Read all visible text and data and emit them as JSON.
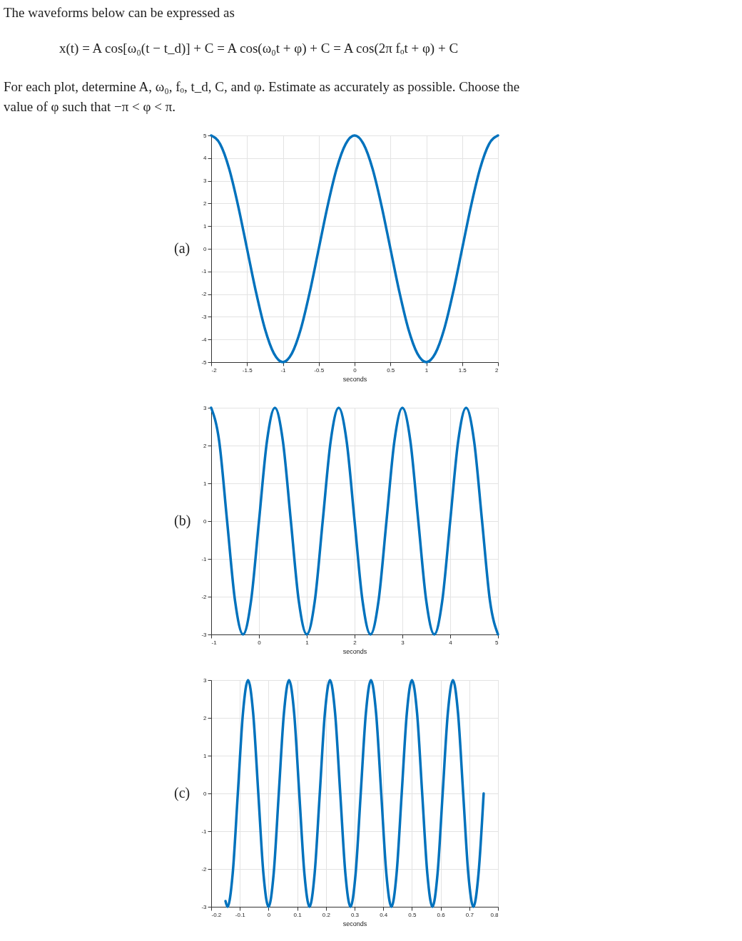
{
  "chart_data": [
    {
      "type": "line",
      "title": "(a)",
      "annotations": [
        "The waveforms below can be expressed as",
        "x(t) = A cos[ω₀(t − t_d)] + C = A cos(ω₀t + φ) + C = A cos(2π fₒt + φ) + C",
        "For each plot, determine A, ω₀, fₒ, t_d, C, and φ. Estimate as accurately as possible. Choose the",
        "value of φ such that −π < φ < π."
      ],
      "xlabel": "seconds",
      "xlim": [
        -2,
        2
      ],
      "xticks": [
        -2,
        -1.5,
        -1,
        -0.5,
        0,
        0.5,
        1,
        1.5,
        2
      ],
      "ylim": [
        -5,
        5
      ],
      "yticks": [
        -5,
        -4,
        -3,
        -2,
        -1,
        0,
        1,
        2,
        3,
        4,
        5
      ],
      "grid": true,
      "series": [
        {
          "color": "#0072bd",
          "x": [
            -2,
            -1.875,
            -1.75,
            -1.625,
            -1.5,
            -1.375,
            -1.25,
            -1.125,
            -1,
            -0.875,
            -0.75,
            -0.625,
            -0.5,
            -0.375,
            -0.25,
            -0.125,
            0,
            0.125,
            0.25,
            0.375,
            0.5,
            0.625,
            0.75,
            0.875,
            1,
            1.125,
            1.25,
            1.375,
            1.5,
            1.625,
            1.75,
            1.875,
            2
          ],
          "values": [
            5,
            4.62,
            3.54,
            1.91,
            0,
            -1.91,
            -3.54,
            -4.62,
            -5,
            -4.62,
            -3.54,
            -1.91,
            0,
            1.91,
            3.54,
            4.62,
            5,
            4.62,
            3.54,
            1.91,
            0,
            -1.91,
            -3.54,
            -4.62,
            -5,
            -4.62,
            -3.54,
            -1.91,
            0,
            1.91,
            3.54,
            4.62,
            5
          ]
        }
      ]
    },
    {
      "type": "line",
      "title": "(b)",
      "xlabel": "seconds",
      "xlim": [
        -1,
        5
      ],
      "xticks": [
        -1,
        0,
        1,
        2,
        3,
        4,
        5
      ],
      "ylim": [
        -3,
        3
      ],
      "yticks": [
        -3,
        -2,
        -1,
        0,
        1,
        2,
        3
      ],
      "grid": true,
      "series": [
        {
          "color": "#0072bd",
          "x": [
            -1,
            -0.833,
            -0.667,
            -0.5,
            -0.333,
            -0.167,
            0,
            0.167,
            0.333,
            0.5,
            0.667,
            0.833,
            1,
            1.167,
            1.333,
            1.5,
            1.667,
            1.833,
            2,
            2.167,
            2.333,
            2.5,
            2.667,
            2.833,
            3,
            3.167,
            3.333,
            3.5,
            3.667,
            3.833,
            4,
            4.167,
            4.333,
            4.5,
            4.667,
            4.833,
            5
          ],
          "values": [
            3,
            2.12,
            0,
            -2.12,
            -3,
            -2.12,
            0,
            2.12,
            3,
            2.12,
            0,
            -2.12,
            -3,
            -2.12,
            0,
            2.12,
            3,
            2.12,
            0,
            -2.12,
            -3,
            -2.12,
            0,
            2.12,
            3,
            2.12,
            0,
            -2.12,
            -3,
            -2.12,
            0,
            2.12,
            3,
            2.12,
            0,
            -2.12,
            -3
          ]
        }
      ]
    },
    {
      "type": "line",
      "title": "(c)",
      "xlabel": "seconds",
      "xlim": [
        -0.2,
        0.8
      ],
      "xticks": [
        -0.2,
        -0.1,
        0,
        0.1,
        0.2,
        0.3,
        0.4,
        0.5,
        0.6,
        0.7,
        0.8
      ],
      "ylim": [
        -3,
        3
      ],
      "yticks": [
        -3,
        -2,
        -1,
        0,
        1,
        2,
        3
      ],
      "grid": true,
      "series": [
        {
          "color": "#0072bd",
          "x": [
            -0.15,
            -0.1429,
            -0.125,
            -0.1071,
            -0.0893,
            -0.0714,
            -0.0536,
            -0.0357,
            -0.0179,
            0,
            0.0179,
            0.0357,
            0.0536,
            0.0714,
            0.0893,
            0.1071,
            0.125,
            0.1429,
            0.1607,
            0.1786,
            0.1964,
            0.2143,
            0.2321,
            0.25,
            0.2679,
            0.2857,
            0.3036,
            0.3214,
            0.3393,
            0.3571,
            0.375,
            0.3929,
            0.4107,
            0.4286,
            0.4464,
            0.4643,
            0.4821,
            0.5,
            0.5179,
            0.5357,
            0.5536,
            0.5714,
            0.5893,
            0.6071,
            0.625,
            0.6429,
            0.6607,
            0.6786,
            0.6964,
            0.7143,
            0.7321,
            0.75
          ],
          "values": [
            -2.85,
            -3,
            -2.12,
            0,
            2.12,
            3,
            2.12,
            0,
            -2.12,
            -3,
            -2.12,
            0,
            2.12,
            3,
            2.12,
            0,
            -2.12,
            -3,
            -2.12,
            0,
            2.12,
            3,
            2.12,
            0,
            -2.12,
            -3,
            -2.12,
            0,
            2.12,
            3,
            2.12,
            0,
            -2.12,
            -3,
            -2.12,
            0,
            2.12,
            3,
            2.12,
            0,
            -2.12,
            -3,
            -2.12,
            0,
            2.12,
            3,
            2.12,
            0,
            -2.12,
            -3,
            -2.12,
            0
          ]
        }
      ]
    }
  ]
}
